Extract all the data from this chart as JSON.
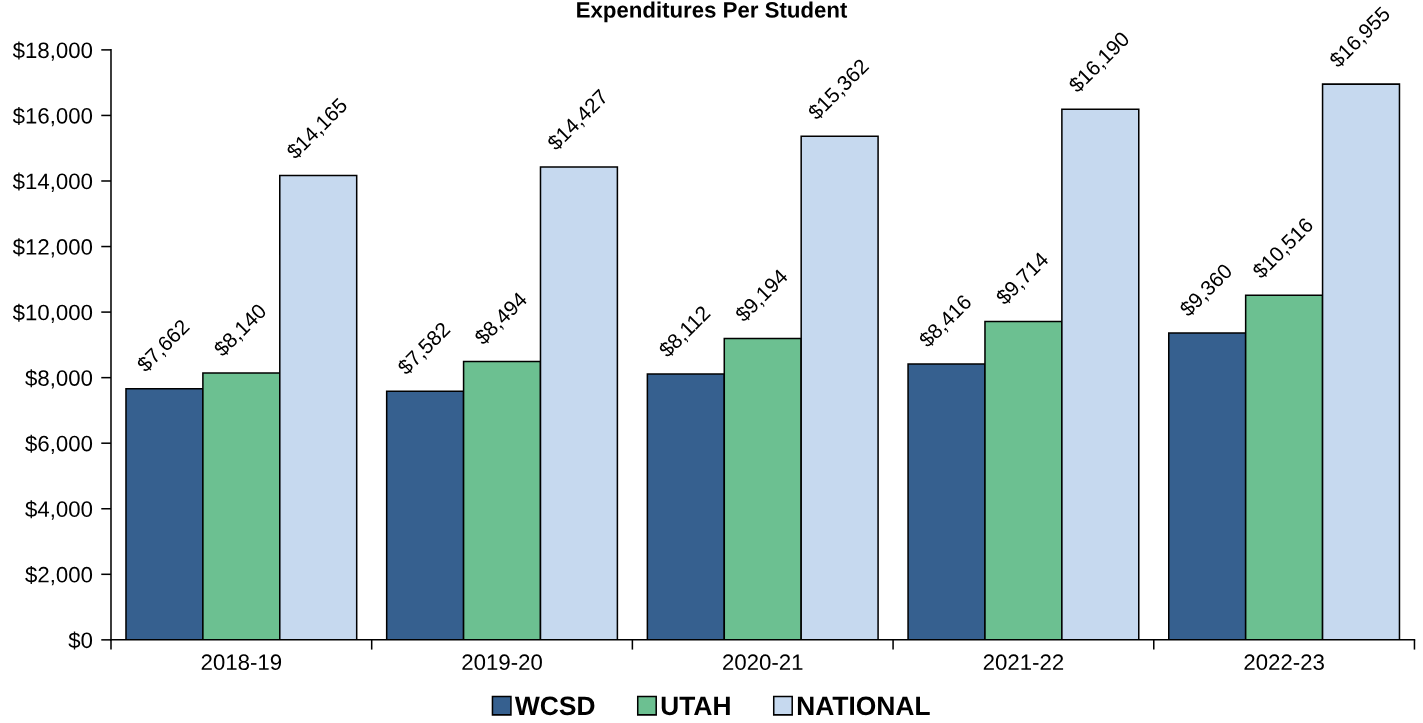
{
  "chart_data": {
    "type": "bar",
    "title": "Expenditures Per Student",
    "categories": [
      "2018-19",
      "2019-20",
      "2020-21",
      "2021-22",
      "2022-23"
    ],
    "series": [
      {
        "name": "WCSD",
        "color": "#36608f",
        "values": [
          7662,
          7582,
          8112,
          8416,
          9360
        ],
        "value_labels": [
          "$7,662",
          "$7,582",
          "$8,112",
          "$8,416",
          "$9,360"
        ]
      },
      {
        "name": "UTAH",
        "color": "#6cc091",
        "values": [
          8140,
          8494,
          9194,
          9714,
          10516
        ],
        "value_labels": [
          "$8,140",
          "$8,494",
          "$9,194",
          "$9,714",
          "$10,516"
        ]
      },
      {
        "name": "NATIONAL",
        "color": "#c6d9ef",
        "values": [
          14165,
          14427,
          15362,
          16190,
          16955
        ],
        "value_labels": [
          "$14,165",
          "$14,427",
          "$15,362",
          "$16,190",
          "$16,955"
        ]
      }
    ],
    "ylim": [
      0,
      18000
    ],
    "yticks": [
      {
        "value": 0,
        "label": "$0"
      },
      {
        "value": 2000,
        "label": "$2,000"
      },
      {
        "value": 4000,
        "label": "$4,000"
      },
      {
        "value": 6000,
        "label": "$6,000"
      },
      {
        "value": 8000,
        "label": "$8,000"
      },
      {
        "value": 10000,
        "label": "$10,000"
      },
      {
        "value": 12000,
        "label": "$12,000"
      },
      {
        "value": 14000,
        "label": "$14,000"
      },
      {
        "value": 16000,
        "label": "$16,000"
      },
      {
        "value": 18000,
        "label": "$18,000"
      }
    ],
    "legend": "bottom"
  }
}
